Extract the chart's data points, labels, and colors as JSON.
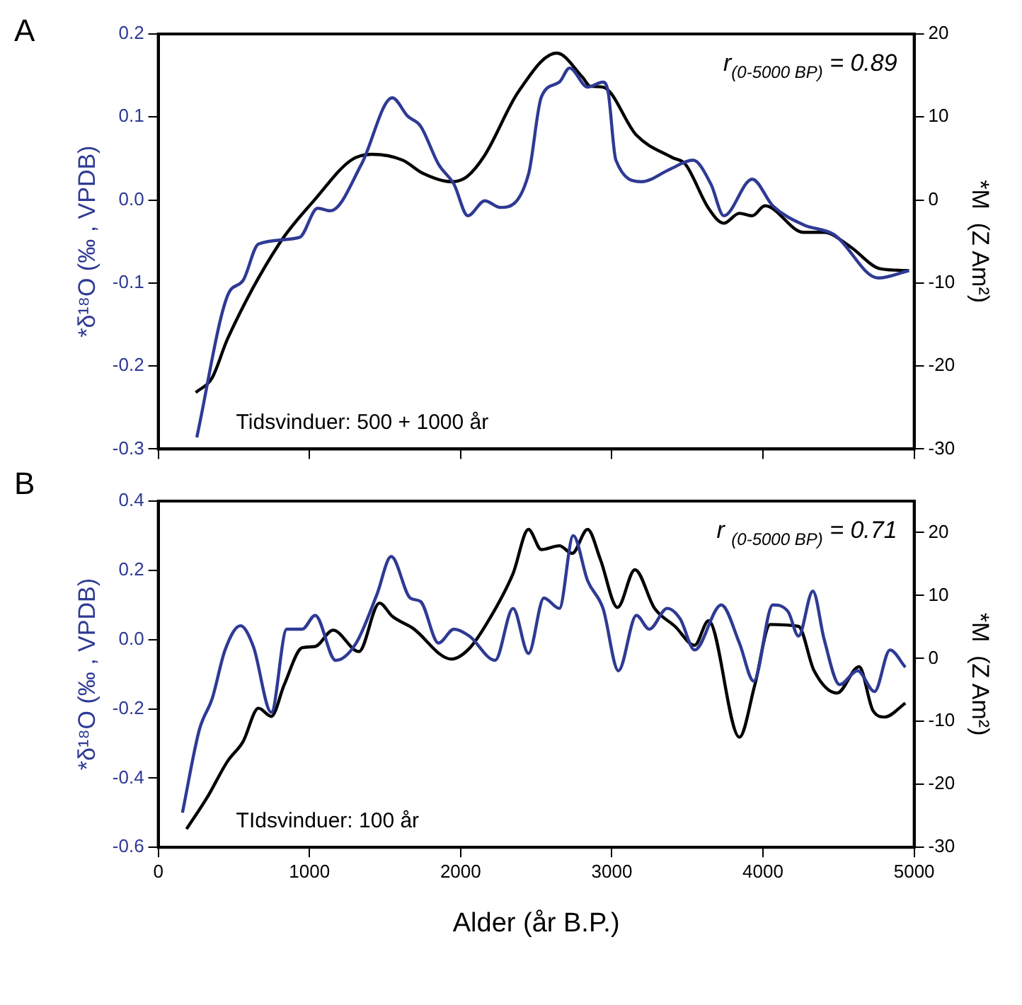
{
  "chart_data": [
    {
      "type": "line",
      "title": "A",
      "ylabel": "*δ¹⁸O (‰ , VPDB)",
      "y2label": "*M  (Z Am²)",
      "annotations": [
        "r$_{(0-5000 BP)}$ = 0.89",
        "Tidsvinduer: 500 + 1000 år"
      ],
      "xlim": [
        0,
        5000
      ],
      "xticks": [
        0,
        1000,
        2000,
        3000,
        4000,
        5000
      ],
      "ylim": [
        -0.3,
        0.2
      ],
      "yticks": [
        -0.3,
        -0.2,
        -0.1,
        {
          "value": 0,
          "label": "0.0"
        },
        0.1,
        0.2
      ],
      "y2lim": [
        -30,
        20
      ],
      "y2ticks": [
        -30,
        -20,
        -10,
        0,
        10,
        20
      ],
      "tick_labels": "y",
      "grid": false,
      "legend": false,
      "marker": "none",
      "line_style": "solid",
      "series": [
        {
          "color": "#2e3a94",
          "x": [
            255,
            459,
            561,
            663,
            935,
            1054,
            1140,
            1344,
            1548,
            1650,
            1735,
            1854,
            1956,
            2048,
            2160,
            2262,
            2449,
            2534,
            2653,
            2721,
            2840,
            2942,
            2976,
            3027,
            3197,
            3384,
            3537,
            3656,
            3741,
            3929,
            4065,
            4269,
            4473,
            4762,
            4966
          ],
          "values": [
            -0.286,
            -0.115,
            -0.097,
            -0.053,
            -0.045,
            -0.01,
            -0.013,
            0.043,
            0.123,
            0.101,
            0.089,
            0.043,
            0.019,
            -0.019,
            -0.001,
            -0.009,
            0.031,
            0.124,
            0.142,
            0.159,
            0.136,
            0.142,
            0.13,
            0.048,
            0.022,
            0.037,
            0.048,
            0.019,
            -0.019,
            0.025,
            -0.007,
            -0.03,
            -0.042,
            -0.094,
            -0.085
          ]
        },
        {
          "color": "#000000",
          "axis": "y2",
          "x": [
            248,
            357,
            459,
            799,
            1038,
            1276,
            1412,
            1616,
            1752,
            1939,
            2041,
            2160,
            2381,
            2636,
            2806,
            2857,
            2942,
            3163,
            3401,
            3487,
            3640,
            3741,
            3844,
            3929,
            4013,
            4269,
            4405,
            4575,
            4779,
            4966
          ],
          "values": [
            -23.2,
            -21.4,
            -16.7,
            -5.3,
            0.1,
            4.8,
            5.5,
            4.8,
            3.2,
            2.2,
            2.8,
            5.4,
            13.0,
            17.7,
            14.8,
            13.7,
            13.6,
            7.8,
            5.1,
            4.3,
            -1.0,
            -2.8,
            -1.6,
            -1.9,
            -0.7,
            -3.9,
            -3.9,
            -5.6,
            -8.3,
            -8.5
          ]
        }
      ]
    },
    {
      "type": "line",
      "title": "B",
      "xlabel": "Alder (år B.P.)",
      "ylabel": "*δ¹⁸O (‰ , VPDB)",
      "y2label": "*M  (Z Am²)",
      "annotations": [
        "r $_{(0-5000 BP)}$ = 0.71",
        "TIdsvinduer: 100 år"
      ],
      "xlim": [
        0,
        5000
      ],
      "xticks": [
        0,
        1000,
        2000,
        3000,
        4000,
        5000
      ],
      "ylim": [
        -0.6,
        0.4
      ],
      "yticks": [
        -0.6,
        -0.4,
        -0.2,
        {
          "value": 0,
          "label": "0.0"
        },
        0.2,
        0.4
      ],
      "y2lim": [
        -30,
        25
      ],
      "y2ticks": [
        -30,
        -20,
        -10,
        0,
        10,
        20
      ],
      "grid": false,
      "legend": false,
      "marker": "none",
      "line_style": "solid",
      "series": [
        {
          "color": "#2e3a94",
          "x": [
            160,
            272,
            357,
            442,
            544,
            629,
            748,
            850,
            952,
            1038,
            1173,
            1309,
            1446,
            1541,
            1667,
            1735,
            1854,
            1956,
            2058,
            2228,
            2347,
            2449,
            2551,
            2653,
            2745,
            2840,
            2942,
            3044,
            3163,
            3248,
            3367,
            3452,
            3548,
            3724,
            3844,
            3939,
            4065,
            4167,
            4235,
            4330,
            4405,
            4507,
            4626,
            4738,
            4840,
            4942
          ],
          "values": [
            -0.5,
            -0.26,
            -0.17,
            -0.03,
            0.04,
            -0.02,
            -0.21,
            0.03,
            0.03,
            0.07,
            -0.06,
            -0.01,
            0.13,
            0.24,
            0.12,
            0.11,
            -0.01,
            0.03,
            0.01,
            -0.06,
            0.09,
            -0.04,
            0.12,
            0.09,
            0.3,
            0.17,
            0.09,
            -0.09,
            0.07,
            0.03,
            0.09,
            0.06,
            -0.03,
            0.1,
            -0.01,
            -0.12,
            0.1,
            0.08,
            0.01,
            0.14,
            0.0,
            -0.13,
            -0.09,
            -0.15,
            -0.03,
            -0.08
          ]
        },
        {
          "color": "#000000",
          "axis": "y2",
          "x": [
            187,
            323,
            459,
            561,
            663,
            748,
            833,
            952,
            1038,
            1156,
            1327,
            1463,
            1548,
            1684,
            1939,
            2058,
            2194,
            2347,
            2449,
            2534,
            2653,
            2738,
            2840,
            2925,
            3038,
            3153,
            3282,
            3418,
            3548,
            3640,
            3844,
            3946,
            4048,
            4235,
            4337,
            4490,
            4636,
            4728,
            4806,
            4942
          ],
          "values": [
            -27.1,
            -22.1,
            -16.3,
            -13.2,
            -7.9,
            -9.2,
            -4.2,
            1.7,
            1.9,
            4.5,
            1.1,
            8.8,
            6.7,
            4.8,
            -0.1,
            1.6,
            6.4,
            13.5,
            20.5,
            17.3,
            17.9,
            16.7,
            20.5,
            15.7,
            8.1,
            14.1,
            8.0,
            5.1,
            2.1,
            6.0,
            -12.5,
            -4.2,
            5.4,
            5.1,
            -1.9,
            -5.5,
            -1.3,
            -8.3,
            -9.3,
            -7.1
          ]
        }
      ]
    }
  ]
}
